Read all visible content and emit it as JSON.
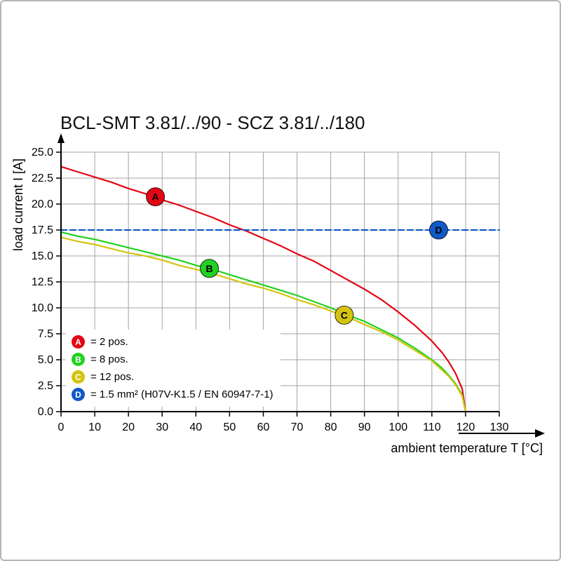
{
  "page": {
    "background": "#ffffff",
    "border_color": "#b6b6b6"
  },
  "chart_data": {
    "type": "line",
    "title": "BCL-SMT 3.81/../90 - SCZ 3.81/../180",
    "xlabel": "ambient temperature T [°C]",
    "ylabel": "load current I [A]",
    "xlim": [
      0,
      130
    ],
    "ylim": [
      0,
      25
    ],
    "xticks": [
      0,
      10,
      20,
      30,
      40,
      50,
      60,
      70,
      80,
      90,
      100,
      110,
      120,
      130
    ],
    "yticks": [
      0,
      2.5,
      5,
      7.5,
      10,
      12.5,
      15,
      17.5,
      20,
      22.5,
      25
    ],
    "grid": true,
    "grid_color": "#a3a3a3",
    "axis_color": "#000000",
    "legend_position": "lower-left",
    "series": [
      {
        "id": "A",
        "label": "= 2 pos.",
        "color": "#e30613",
        "style": "solid",
        "marker": {
          "x": 28,
          "y": 20.7
        },
        "points": [
          [
            0,
            23.6
          ],
          [
            5,
            23.1
          ],
          [
            10,
            22.6
          ],
          [
            15,
            22.1
          ],
          [
            20,
            21.5
          ],
          [
            25,
            21.0
          ],
          [
            30,
            20.4
          ],
          [
            35,
            19.9
          ],
          [
            40,
            19.3
          ],
          [
            45,
            18.7
          ],
          [
            50,
            18.0
          ],
          [
            55,
            17.4
          ],
          [
            60,
            16.7
          ],
          [
            65,
            16.0
          ],
          [
            70,
            15.2
          ],
          [
            75,
            14.5
          ],
          [
            80,
            13.6
          ],
          [
            85,
            12.7
          ],
          [
            90,
            11.8
          ],
          [
            95,
            10.8
          ],
          [
            100,
            9.6
          ],
          [
            105,
            8.3
          ],
          [
            110,
            6.8
          ],
          [
            113,
            5.7
          ],
          [
            115,
            4.8
          ],
          [
            117,
            3.7
          ],
          [
            119,
            2.2
          ],
          [
            120,
            0
          ]
        ]
      },
      {
        "id": "B",
        "label": "= 8 pos.",
        "color": "#22d122",
        "style": "solid",
        "marker": {
          "x": 44,
          "y": 13.8
        },
        "points": [
          [
            0,
            17.3
          ],
          [
            5,
            16.9
          ],
          [
            10,
            16.6
          ],
          [
            15,
            16.2
          ],
          [
            20,
            15.8
          ],
          [
            25,
            15.4
          ],
          [
            30,
            15.0
          ],
          [
            35,
            14.6
          ],
          [
            40,
            14.1
          ],
          [
            45,
            13.7
          ],
          [
            50,
            13.2
          ],
          [
            55,
            12.7
          ],
          [
            60,
            12.2
          ],
          [
            65,
            11.7
          ],
          [
            70,
            11.2
          ],
          [
            75,
            10.6
          ],
          [
            80,
            10.0
          ],
          [
            85,
            9.3
          ],
          [
            90,
            8.7
          ],
          [
            95,
            7.9
          ],
          [
            100,
            7.1
          ],
          [
            105,
            6.1
          ],
          [
            110,
            5.0
          ],
          [
            113,
            4.2
          ],
          [
            115,
            3.5
          ],
          [
            117,
            2.7
          ],
          [
            119,
            1.6
          ],
          [
            120,
            0
          ]
        ]
      },
      {
        "id": "C",
        "label": "= 12 pos.",
        "color": "#d4c410",
        "style": "solid",
        "marker": {
          "x": 84,
          "y": 9.3
        },
        "points": [
          [
            0,
            16.8
          ],
          [
            5,
            16.4
          ],
          [
            10,
            16.1
          ],
          [
            15,
            15.7
          ],
          [
            20,
            15.3
          ],
          [
            25,
            15.0
          ],
          [
            30,
            14.6
          ],
          [
            35,
            14.1
          ],
          [
            40,
            13.7
          ],
          [
            45,
            13.3
          ],
          [
            50,
            12.8
          ],
          [
            55,
            12.3
          ],
          [
            60,
            11.9
          ],
          [
            65,
            11.4
          ],
          [
            70,
            10.8
          ],
          [
            75,
            10.3
          ],
          [
            80,
            9.7
          ],
          [
            85,
            9.1
          ],
          [
            90,
            8.4
          ],
          [
            95,
            7.7
          ],
          [
            100,
            6.9
          ],
          [
            105,
            5.9
          ],
          [
            110,
            4.9
          ],
          [
            113,
            4.0
          ],
          [
            115,
            3.4
          ],
          [
            117,
            2.6
          ],
          [
            119,
            1.5
          ],
          [
            120,
            0
          ]
        ]
      },
      {
        "id": "D",
        "label": "= 1.5 mm² (H07V-K1.5 / EN 60947-7-1)",
        "color": "#1059c8",
        "style": "dashed",
        "marker": {
          "x": 112,
          "y": 17.5
        },
        "points": [
          [
            0,
            17.5
          ],
          [
            130,
            17.5
          ]
        ]
      }
    ]
  }
}
